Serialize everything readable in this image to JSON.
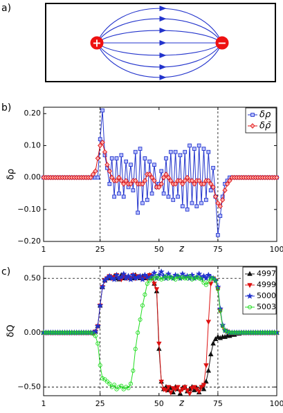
{
  "diagram": {
    "label": "a)",
    "positive": "+",
    "negative": "−"
  },
  "chart_data": [
    {
      "type": "line",
      "panel_label": "b)",
      "x_label": "z",
      "y_label": "δρ",
      "xlim": [
        1,
        100
      ],
      "xticks": [
        1,
        25,
        50,
        75,
        100
      ],
      "ylim": [
        -0.2,
        0.22
      ],
      "yticks": [
        {
          "value": -0.2,
          "label": "−0.20"
        },
        {
          "value": -0.1,
          "label": "−0.10"
        },
        {
          "value": 0,
          "label": "0.00"
        },
        {
          "value": 0.1,
          "label": "0.10"
        },
        {
          "value": 0.2,
          "label": "0.20"
        }
      ],
      "vlines": [
        25,
        75
      ],
      "legend": "upper right",
      "x": [
        1,
        2,
        3,
        4,
        5,
        6,
        7,
        8,
        9,
        10,
        11,
        12,
        13,
        14,
        15,
        16,
        17,
        18,
        19,
        20,
        21,
        22,
        23,
        24,
        25,
        26,
        27,
        28,
        29,
        30,
        31,
        32,
        33,
        34,
        35,
        36,
        37,
        38,
        39,
        40,
        41,
        42,
        43,
        44,
        45,
        46,
        47,
        48,
        49,
        50,
        51,
        52,
        53,
        54,
        55,
        56,
        57,
        58,
        59,
        60,
        61,
        62,
        63,
        64,
        65,
        66,
        67,
        68,
        69,
        70,
        71,
        72,
        73,
        74,
        75,
        76,
        77,
        78,
        79,
        80,
        81,
        82,
        83,
        84,
        85,
        86,
        87,
        88,
        89,
        90,
        91,
        92,
        93,
        94,
        95,
        96,
        97,
        98,
        99,
        100
      ],
      "series": [
        {
          "name": "δρ",
          "color": "#2233cc",
          "marker": "square",
          "filled": false,
          "values": [
            0,
            0,
            0,
            0,
            0,
            0,
            0,
            0,
            0,
            0,
            0,
            0,
            0,
            0,
            0,
            0,
            0,
            0,
            0,
            0,
            0,
            0,
            0,
            0,
            0.12,
            0.21,
            0.07,
            0.03,
            -0.02,
            0.06,
            -0.06,
            0.06,
            -0.05,
            0.07,
            -0.06,
            0.05,
            -0.03,
            0.04,
            -0.04,
            0.08,
            -0.11,
            0.09,
            -0.08,
            0.06,
            -0.07,
            0.05,
            -0.05,
            0.04,
            -0.03,
            -0.02,
            0.02,
            -0.05,
            0.06,
            -0.06,
            0.08,
            -0.07,
            0.08,
            -0.06,
            0.07,
            -0.09,
            0.08,
            -0.1,
            0.1,
            -0.08,
            0.09,
            -0.09,
            0.1,
            -0.08,
            0.09,
            -0.07,
            0.08,
            -0.04,
            0.03,
            -0.06,
            -0.18,
            -0.12,
            -0.06,
            -0.02,
            -0.01,
            0,
            0,
            0,
            0,
            0,
            0,
            0,
            0,
            0,
            0,
            0,
            0,
            0,
            0,
            0,
            0,
            0,
            0,
            0,
            0,
            0
          ]
        },
        {
          "name": "δρ̄",
          "color": "#dd1111",
          "marker": "diamond",
          "filled": false,
          "values": [
            0,
            0,
            0,
            0,
            0,
            0,
            0,
            0,
            0,
            0,
            0,
            0,
            0,
            0,
            0,
            0,
            0,
            0,
            0,
            0,
            0,
            0.01,
            0.02,
            0.06,
            0.1,
            0.11,
            0.08,
            0.04,
            0.02,
            0,
            -0.01,
            -0.01,
            0,
            -0.01,
            -0.02,
            -0.01,
            -0.02,
            -0.02,
            -0.01,
            -0.01,
            -0.02,
            -0.02,
            -0.02,
            -0.01,
            0.01,
            0.01,
            0,
            -0.01,
            -0.03,
            -0.03,
            -0.02,
            0,
            0.01,
            0,
            -0.01,
            -0.02,
            -0.02,
            -0.01,
            -0.01,
            -0.02,
            -0.01,
            0,
            -0.01,
            -0.01,
            -0.02,
            -0.01,
            -0.01,
            -0.02,
            -0.02,
            -0.01,
            -0.01,
            -0.02,
            -0.03,
            -0.06,
            -0.08,
            -0.09,
            -0.07,
            -0.04,
            -0.02,
            -0.01,
            0,
            0,
            0,
            0,
            0,
            0,
            0,
            0,
            0,
            0,
            0,
            0,
            0,
            0,
            0,
            0,
            0,
            0,
            0,
            0
          ]
        }
      ]
    },
    {
      "type": "line",
      "panel_label": "c)",
      "x_label": "z",
      "y_label": "δQ",
      "xlim": [
        1,
        100
      ],
      "xticks": [
        1,
        25,
        50,
        75,
        100
      ],
      "ylim": [
        -0.58,
        0.61
      ],
      "yticks": [
        {
          "value": -0.5,
          "label": "−0.50"
        },
        {
          "value": 0,
          "label": "0.00"
        },
        {
          "value": 0.5,
          "label": "0.50"
        }
      ],
      "vlines": [
        25,
        75
      ],
      "hlines": [
        -0.5,
        0.5
      ],
      "legend": "upper right",
      "x": [
        1,
        2,
        3,
        4,
        5,
        6,
        7,
        8,
        9,
        10,
        11,
        12,
        13,
        14,
        15,
        16,
        17,
        18,
        19,
        20,
        21,
        22,
        23,
        24,
        25,
        26,
        27,
        28,
        29,
        30,
        31,
        32,
        33,
        34,
        35,
        36,
        37,
        38,
        39,
        40,
        41,
        42,
        43,
        44,
        45,
        46,
        47,
        48,
        49,
        50,
        51,
        52,
        53,
        54,
        55,
        56,
        57,
        58,
        59,
        60,
        61,
        62,
        63,
        64,
        65,
        66,
        67,
        68,
        69,
        70,
        71,
        72,
        73,
        74,
        75,
        76,
        77,
        78,
        79,
        80,
        81,
        82,
        83,
        84,
        85,
        86,
        87,
        88,
        89,
        90,
        91,
        92,
        93,
        94,
        95,
        96,
        97,
        98,
        99,
        100
      ],
      "series": [
        {
          "name": "4997",
          "color": "#111111",
          "marker": "triangle-up",
          "filled": true,
          "values": [
            0,
            0,
            0,
            0,
            0,
            0,
            0,
            0,
            0,
            0,
            0,
            0,
            0,
            0,
            0,
            0,
            0,
            0,
            0,
            0,
            0,
            0,
            0.01,
            0.06,
            0.25,
            0.42,
            0.48,
            0.5,
            0.51,
            0.5,
            0.52,
            0.5,
            0.49,
            0.53,
            0.5,
            0.51,
            0.52,
            0.5,
            0.5,
            0.53,
            0.51,
            0.5,
            0.52,
            0.5,
            0.51,
            0.53,
            0.5,
            0.45,
            0.38,
            -0.15,
            -0.45,
            -0.52,
            -0.5,
            -0.53,
            -0.51,
            -0.55,
            -0.5,
            -0.52,
            -0.56,
            -0.51,
            -0.5,
            -0.54,
            -0.52,
            -0.5,
            -0.53,
            -0.51,
            -0.55,
            -0.5,
            -0.52,
            -0.45,
            -0.35,
            -0.2,
            -0.1,
            -0.06,
            -0.04,
            -0.05,
            -0.04,
            -0.04,
            -0.03,
            -0.03,
            -0.02,
            -0.02,
            -0.01,
            -0.01,
            0,
            0,
            0,
            0,
            0,
            0,
            0,
            0,
            0,
            0,
            0,
            0,
            0,
            0,
            0,
            0
          ]
        },
        {
          "name": "4999",
          "color": "#dd1111",
          "marker": "triangle-down",
          "filled": true,
          "values": [
            0,
            0,
            0,
            0,
            0,
            0,
            0,
            0,
            0,
            0,
            0,
            0,
            0,
            0,
            0,
            0,
            0,
            0,
            0,
            0,
            0,
            0,
            0.01,
            0.06,
            0.25,
            0.42,
            0.48,
            0.5,
            0.52,
            0.5,
            0.51,
            0.53,
            0.5,
            0.49,
            0.52,
            0.5,
            0.51,
            0.5,
            0.53,
            0.5,
            0.52,
            0.51,
            0.5,
            0.52,
            0.5,
            0.53,
            0.51,
            0.45,
            0.4,
            -0.1,
            -0.45,
            -0.52,
            -0.53,
            -0.5,
            -0.55,
            -0.51,
            -0.52,
            -0.5,
            -0.54,
            -0.52,
            -0.5,
            -0.53,
            -0.56,
            -0.51,
            -0.5,
            -0.52,
            -0.54,
            -0.5,
            -0.48,
            -0.3,
            0.1,
            0.45,
            0.5,
            0.48,
            0.4,
            0.2,
            0.06,
            0.02,
            0.01,
            0,
            0,
            0,
            0,
            0,
            0,
            0,
            0,
            0,
            0,
            0,
            0,
            0,
            0,
            0,
            0,
            0,
            0,
            0,
            0,
            0
          ]
        },
        {
          "name": "5000",
          "color": "#2233cc",
          "marker": "star",
          "filled": true,
          "values": [
            0,
            0,
            0,
            0,
            0,
            0,
            0,
            0,
            0,
            0,
            0,
            0,
            0,
            0,
            0,
            0,
            0,
            0,
            0,
            0,
            0,
            0,
            0.01,
            0.06,
            0.25,
            0.42,
            0.48,
            0.5,
            0.52,
            0.5,
            0.49,
            0.53,
            0.5,
            0.51,
            0.54,
            0.5,
            0.52,
            0.49,
            0.53,
            0.5,
            0.51,
            0.52,
            0.49,
            0.53,
            0.51,
            0.5,
            0.52,
            0.55,
            0.5,
            0.53,
            0.56,
            0.52,
            0.5,
            0.54,
            0.51,
            0.5,
            0.53,
            0.52,
            0.5,
            0.54,
            0.51,
            0.52,
            0.5,
            0.53,
            0.5,
            0.51,
            0.54,
            0.5,
            0.52,
            0.5,
            0.53,
            0.51,
            0.5,
            0.48,
            0.42,
            0.22,
            0.07,
            0.02,
            0.01,
            0,
            0,
            0,
            0,
            0,
            0,
            0,
            0,
            0,
            0,
            0,
            0,
            0,
            0,
            0,
            0,
            0,
            0,
            0,
            0,
            0
          ]
        },
        {
          "name": "5003",
          "color": "#22dd22",
          "marker": "circle",
          "filled": false,
          "values": [
            0,
            0,
            0,
            0,
            0,
            0,
            0,
            0,
            0,
            0,
            0,
            0,
            0,
            0,
            0,
            0,
            0,
            0,
            0,
            0,
            0,
            -0.01,
            -0.03,
            -0.1,
            -0.3,
            -0.42,
            -0.43,
            -0.45,
            -0.47,
            -0.5,
            -0.48,
            -0.52,
            -0.5,
            -0.49,
            -0.52,
            -0.5,
            -0.51,
            -0.47,
            -0.35,
            -0.15,
            0,
            0.12,
            0.25,
            0.35,
            0.45,
            0.48,
            0.5,
            0.5,
            0.52,
            0.5,
            0.49,
            0.5,
            0.52,
            0.5,
            0.51,
            0.5,
            0.49,
            0.52,
            0.5,
            0.51,
            0.5,
            0.5,
            0.52,
            0.49,
            0.5,
            0.51,
            0.5,
            0.49,
            0.46,
            0.44,
            0.47,
            0.5,
            0.5,
            0.48,
            0.4,
            0.2,
            0.06,
            0.02,
            0.01,
            0,
            0,
            0,
            0,
            0,
            0,
            0,
            0,
            0,
            0,
            0,
            0,
            0,
            0,
            0,
            0,
            0,
            0,
            0,
            0,
            0
          ]
        }
      ]
    }
  ]
}
